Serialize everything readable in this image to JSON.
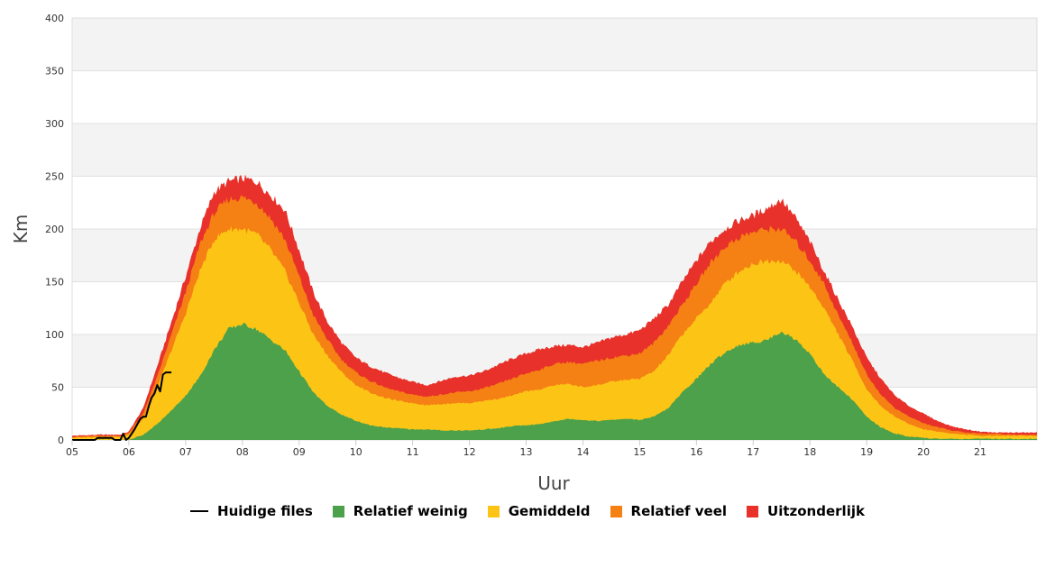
{
  "chart_data": {
    "type": "area",
    "xlabel": "Uur",
    "ylabel": "Km",
    "ylim": [
      0,
      400
    ],
    "yticks": [
      0,
      50,
      100,
      150,
      200,
      250,
      300,
      350,
      400
    ],
    "xlim": [
      5,
      22
    ],
    "xticks": [
      "05",
      "06",
      "07",
      "08",
      "09",
      "10",
      "11",
      "12",
      "13",
      "14",
      "15",
      "16",
      "17",
      "18",
      "19",
      "20",
      "21"
    ],
    "grid": true,
    "legend_position": "bottom",
    "x_hours": [
      5.0,
      5.5,
      5.85,
      6.0,
      6.25,
      6.5,
      6.75,
      7.0,
      7.25,
      7.5,
      7.75,
      8.0,
      8.25,
      8.5,
      8.75,
      9.0,
      9.25,
      9.5,
      9.75,
      10.0,
      10.25,
      10.5,
      10.75,
      11.0,
      11.25,
      11.5,
      11.75,
      12.0,
      12.25,
      12.5,
      12.75,
      13.0,
      13.25,
      13.5,
      13.75,
      14.0,
      14.25,
      14.5,
      14.75,
      15.0,
      15.25,
      15.5,
      15.75,
      16.0,
      16.25,
      16.5,
      16.75,
      17.0,
      17.25,
      17.5,
      17.75,
      18.0,
      18.25,
      18.5,
      18.75,
      19.0,
      19.25,
      19.5,
      19.75,
      20.0,
      20.25,
      20.5,
      20.75,
      21.0,
      21.25,
      21.5,
      21.75,
      22.0
    ],
    "series": [
      {
        "name": "Relatief weinig",
        "color": "#4ca14a",
        "values": [
          0,
          0,
          0,
          0,
          5,
          15,
          28,
          42,
          60,
          85,
          105,
          110,
          105,
          95,
          85,
          65,
          45,
          32,
          24,
          18,
          14,
          12,
          11,
          10,
          10,
          9,
          9,
          9,
          10,
          11,
          13,
          14,
          15,
          18,
          20,
          19,
          18,
          19,
          20,
          19,
          22,
          30,
          45,
          58,
          72,
          83,
          90,
          92,
          95,
          103,
          95,
          82,
          62,
          50,
          38,
          22,
          12,
          6,
          3,
          2,
          1,
          1,
          1,
          1,
          1,
          1,
          1,
          1
        ]
      },
      {
        "name": "Gemiddeld",
        "color": "#fcc516",
        "values": [
          2,
          3,
          3,
          5,
          20,
          50,
          85,
          120,
          160,
          190,
          200,
          200,
          195,
          180,
          160,
          130,
          100,
          80,
          64,
          52,
          45,
          40,
          37,
          35,
          33,
          34,
          35,
          35,
          37,
          39,
          42,
          46,
          48,
          52,
          53,
          50,
          52,
          55,
          57,
          58,
          65,
          80,
          100,
          115,
          130,
          148,
          160,
          167,
          170,
          170,
          160,
          145,
          125,
          100,
          75,
          48,
          32,
          22,
          15,
          10,
          8,
          6,
          5,
          4,
          4,
          4,
          4,
          4
        ]
      },
      {
        "name": "Relatief veel",
        "color": "#f58013",
        "values": [
          3,
          4,
          4,
          7,
          25,
          60,
          100,
          140,
          185,
          215,
          228,
          230,
          225,
          210,
          190,
          155,
          118,
          95,
          76,
          64,
          56,
          50,
          46,
          43,
          41,
          43,
          45,
          46,
          49,
          53,
          58,
          63,
          67,
          72,
          74,
          72,
          75,
          78,
          80,
          82,
          92,
          108,
          128,
          148,
          168,
          183,
          192,
          197,
          200,
          200,
          188,
          170,
          148,
          118,
          92,
          62,
          43,
          30,
          22,
          16,
          12,
          9,
          7,
          6,
          6,
          5,
          5,
          5
        ]
      },
      {
        "name": "Uitzonderlijk",
        "color": "#e8312a",
        "values": [
          4,
          5,
          5,
          8,
          30,
          70,
          112,
          155,
          200,
          235,
          245,
          248,
          245,
          232,
          218,
          180,
          140,
          112,
          92,
          78,
          70,
          64,
          59,
          55,
          52,
          56,
          60,
          61,
          65,
          71,
          77,
          82,
          86,
          89,
          90,
          88,
          92,
          97,
          100,
          104,
          115,
          128,
          150,
          170,
          188,
          200,
          208,
          213,
          220,
          228,
          210,
          188,
          160,
          133,
          107,
          78,
          58,
          42,
          32,
          25,
          18,
          13,
          10,
          8,
          7,
          7,
          7,
          7
        ]
      }
    ],
    "current": {
      "name": "Huidige files",
      "color": "#000000",
      "x": [
        5.0,
        5.4,
        5.45,
        5.7,
        5.75,
        5.85,
        5.9,
        5.95,
        6.0,
        6.05,
        6.1,
        6.15,
        6.2,
        6.25,
        6.3,
        6.35,
        6.4,
        6.45,
        6.5,
        6.55,
        6.6,
        6.65,
        6.7,
        6.75
      ],
      "values": [
        0,
        0,
        2,
        2,
        0,
        0,
        6,
        0,
        2,
        6,
        10,
        15,
        20,
        22,
        22,
        32,
        40,
        44,
        52,
        46,
        62,
        64,
        64,
        64
      ]
    }
  },
  "legend": {
    "items": [
      {
        "label": "Huidige files",
        "kind": "line",
        "color": "#000000"
      },
      {
        "label": "Relatief weinig",
        "kind": "box",
        "color": "#4ca14a"
      },
      {
        "label": "Gemiddeld",
        "kind": "box",
        "color": "#fcc516"
      },
      {
        "label": "Relatief veel",
        "kind": "box",
        "color": "#f58013"
      },
      {
        "label": "Uitzonderlijk",
        "kind": "box",
        "color": "#e8312a"
      }
    ]
  }
}
